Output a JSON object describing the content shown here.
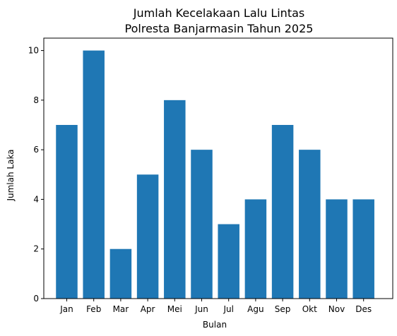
{
  "chart_data": {
    "type": "bar",
    "title_line1": "Jumlah Kecelakaan Lalu Lintas",
    "title_line2": "Polresta Banjarmasin Tahun 2025",
    "xlabel": "Bulan",
    "ylabel": "Jumlah Laka",
    "categories": [
      "Jan",
      "Feb",
      "Mar",
      "Apr",
      "Mei",
      "Jun",
      "Jul",
      "Agu",
      "Sep",
      "Okt",
      "Nov",
      "Des"
    ],
    "values": [
      7,
      10,
      2,
      5,
      8,
      6,
      3,
      4,
      7,
      6,
      4,
      4
    ],
    "ylim": [
      0,
      10.5
    ],
    "yticks": [
      0,
      2,
      4,
      6,
      8,
      10
    ],
    "bar_color": "#1f77b4",
    "grid": false
  }
}
